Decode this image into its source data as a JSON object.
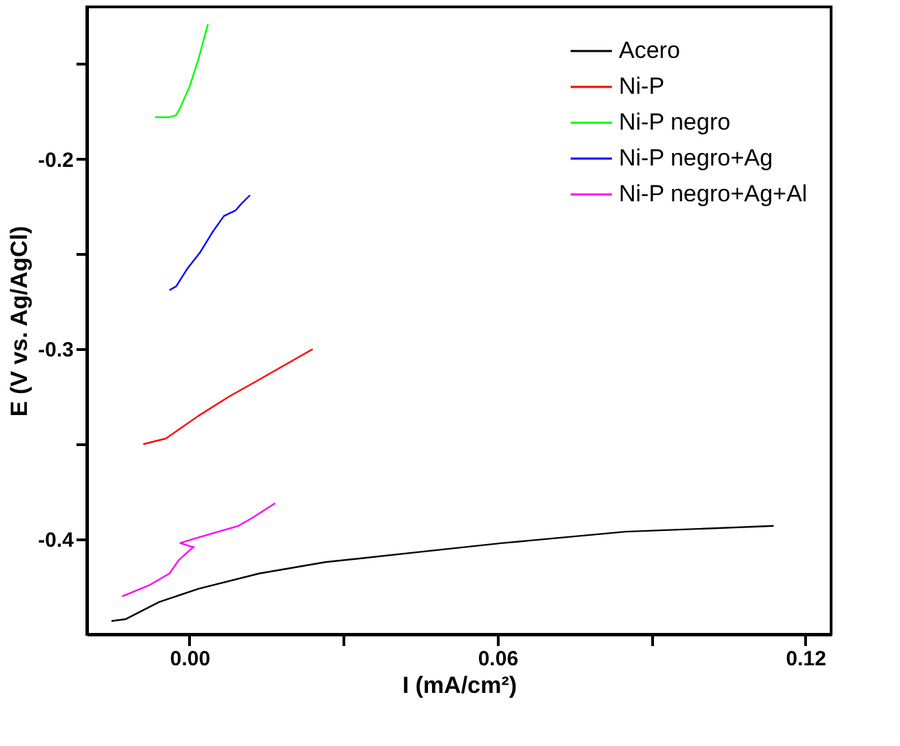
{
  "chart_data": {
    "type": "line",
    "xlabel": "I (mA/cm²)",
    "ylabel": "E (V vs. Ag/AgCl)",
    "xlim": [
      -0.02,
      0.125
    ],
    "ylim": [
      -0.45,
      -0.12
    ],
    "xticks": [
      {
        "value": 0,
        "label": "0.00"
      },
      {
        "value": 0.03,
        "label": null
      },
      {
        "value": 0.06,
        "label": "0.06"
      },
      {
        "value": 0.09,
        "label": null
      },
      {
        "value": 0.12,
        "label": "0.12"
      }
    ],
    "yticks": [
      {
        "value": -0.4,
        "label": "-0.4"
      },
      {
        "value": -0.35,
        "label": null
      },
      {
        "value": -0.3,
        "label": "-0.3"
      },
      {
        "value": -0.25,
        "label": null
      },
      {
        "value": -0.2,
        "label": "-0.2"
      },
      {
        "value": -0.15,
        "label": null
      }
    ],
    "grid": false,
    "legend": "top right",
    "line_style": "solid",
    "marker": "none",
    "series": [
      {
        "name": "Acero",
        "color": "#000000",
        "x": [
          -0.0152,
          -0.0124,
          -0.0059,
          0.0018,
          0.0136,
          0.0265,
          0.0335,
          0.0438,
          0.061,
          0.085,
          0.1138
        ],
        "values": [
          -0.443,
          -0.442,
          -0.433,
          -0.426,
          -0.418,
          -0.412,
          -0.41,
          -0.407,
          -0.402,
          -0.396,
          -0.393
        ]
      },
      {
        "name": "Ni-P",
        "color": "#ff0000",
        "x": [
          -0.009,
          -0.0046,
          0.0018,
          0.0077,
          0.0136,
          0.024
        ],
        "values": [
          -0.35,
          -0.347,
          -0.335,
          -0.325,
          -0.316,
          -0.3
        ]
      },
      {
        "name": "Ni-P negro",
        "color": "#00ff00",
        "x": [
          -0.0067,
          -0.0039,
          -0.0026,
          -0.0018,
          0,
          0.0018,
          0.0036
        ],
        "values": [
          -0.178,
          -0.178,
          -0.177,
          -0.173,
          -0.162,
          -0.147,
          -0.129
        ]
      },
      {
        "name": "Ni-P negro+Ag",
        "color": "#0000ff",
        "x": [
          -0.0039,
          -0.0026,
          -0.0005,
          0.0021,
          0.0046,
          0.0067,
          0.009,
          0.0103,
          0.0118
        ],
        "values": [
          -0.269,
          -0.267,
          -0.258,
          -0.249,
          -0.238,
          -0.23,
          -0.227,
          -0.223,
          -0.219
        ]
      },
      {
        "name": "Ni-P negro+Ag+Al",
        "color": "#ff00ff",
        "x": [
          -0.0131,
          -0.0077,
          -0.0039,
          -0.0021,
          0.0008,
          0.0005,
          -0.0018,
          0.0018,
          0.0095,
          0.0121,
          0.0167
        ],
        "values": [
          -0.43,
          -0.424,
          -0.418,
          -0.411,
          -0.404,
          -0.404,
          -0.402,
          -0.399,
          -0.393,
          -0.389,
          -0.381
        ]
      }
    ]
  }
}
